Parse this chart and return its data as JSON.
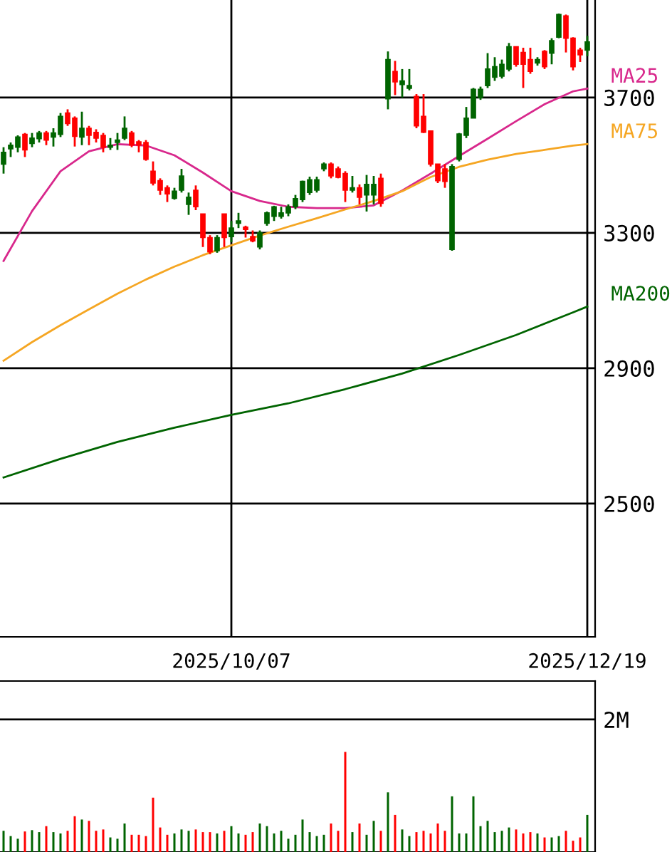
{
  "chart_data": [
    {
      "type": "candlestick",
      "categories": [
        null,
        null,
        null,
        null,
        null,
        null,
        null,
        null,
        null,
        null,
        null,
        null,
        null,
        null,
        null,
        null,
        null,
        null,
        null,
        null,
        null,
        null,
        null,
        null,
        null,
        null,
        null,
        null,
        null,
        null,
        null,
        null,
        "2025/10/07",
        null,
        null,
        null,
        null,
        null,
        null,
        null,
        null,
        null,
        null,
        null,
        null,
        null,
        null,
        null,
        null,
        null,
        null,
        null,
        null,
        null,
        null,
        null,
        null,
        null,
        null,
        null,
        null,
        null,
        null,
        null,
        null,
        null,
        null,
        null,
        null,
        null,
        null,
        null,
        null,
        null,
        null,
        null,
        null,
        null,
        null,
        null,
        null,
        null,
        "2025/12/19"
      ],
      "ohlc": [
        [
          3503,
          3553,
          3475,
          3538
        ],
        [
          3548,
          3567,
          3524,
          3559
        ],
        [
          3553,
          3588,
          3538,
          3583
        ],
        [
          3591,
          3595,
          3524,
          3545
        ],
        [
          3564,
          3595,
          3553,
          3580
        ],
        [
          3578,
          3601,
          3567,
          3595
        ],
        [
          3595,
          3601,
          3559,
          3574
        ],
        [
          3583,
          3609,
          3555,
          3595
        ],
        [
          3591,
          3654,
          3583,
          3644
        ],
        [
          3654,
          3665,
          3616,
          3623
        ],
        [
          3639,
          3644,
          3555,
          3585
        ],
        [
          3583,
          3658,
          3559,
          3609
        ],
        [
          3609,
          3616,
          3559,
          3588
        ],
        [
          3597,
          3606,
          3567,
          3580
        ],
        [
          3588,
          3595,
          3538,
          3553
        ],
        [
          3553,
          3580,
          3545,
          3559
        ],
        [
          3567,
          3595,
          3545,
          3574
        ],
        [
          3580,
          3644,
          3574,
          3609
        ],
        [
          3595,
          3601,
          3553,
          3559
        ],
        [
          3569,
          3574,
          3538,
          3559
        ],
        [
          3567,
          3574,
          3513,
          3517
        ],
        [
          3482,
          3511,
          3440,
          3447
        ],
        [
          3454,
          3461,
          3412,
          3426
        ],
        [
          3433,
          3440,
          3391,
          3415
        ],
        [
          3402,
          3433,
          3398,
          3423
        ],
        [
          3426,
          3489,
          3419,
          3468
        ],
        [
          3384,
          3419,
          3353,
          3405
        ],
        [
          3426,
          3440,
          3367,
          3377
        ],
        [
          3356,
          3356,
          3258,
          3286
        ],
        [
          3286,
          3293,
          3237,
          3244
        ],
        [
          3247,
          3293,
          3241,
          3286
        ],
        [
          3356,
          3356,
          3258,
          3286
        ],
        [
          3289,
          3335,
          3272,
          3314
        ],
        [
          3328,
          3359,
          3314,
          3335
        ],
        [
          3317,
          3321,
          3286,
          3310
        ],
        [
          3289,
          3307,
          3272,
          3276
        ],
        [
          3258,
          3307,
          3251,
          3300
        ],
        [
          3328,
          3363,
          3321,
          3359
        ],
        [
          3349,
          3380,
          3335,
          3377
        ],
        [
          3349,
          3377,
          3342,
          3359
        ],
        [
          3359,
          3384,
          3349,
          3377
        ],
        [
          3377,
          3412,
          3370,
          3401
        ],
        [
          3398,
          3454,
          3391,
          3452
        ],
        [
          3419,
          3466,
          3412,
          3457
        ],
        [
          3426,
          3466,
          3419,
          3457
        ],
        [
          3489,
          3508,
          3482,
          3503
        ],
        [
          3503,
          3508,
          3461,
          3468
        ],
        [
          3489,
          3496,
          3461,
          3464
        ],
        [
          3475,
          3482,
          3391,
          3426
        ],
        [
          3426,
          3468,
          3419,
          3433
        ],
        [
          3433,
          3443,
          3384,
          3405
        ],
        [
          3412,
          3471,
          3363,
          3443
        ],
        [
          3412,
          3468,
          3384,
          3443
        ],
        [
          3461,
          3475,
          3377,
          3387
        ],
        [
          3696,
          3836,
          3665,
          3812
        ],
        [
          3777,
          3808,
          3707,
          3746
        ],
        [
          3738,
          3784,
          3700,
          3749
        ],
        [
          3727,
          3784,
          3721,
          3735
        ],
        [
          3703,
          3710,
          3609,
          3616
        ],
        [
          3644,
          3710,
          3595,
          3597
        ],
        [
          3601,
          3601,
          3496,
          3503
        ],
        [
          3503,
          3503,
          3447,
          3454
        ],
        [
          3489,
          3503,
          3433,
          3452
        ],
        [
          3251,
          3503,
          3247,
          3496
        ],
        [
          3517,
          3595,
          3511,
          3592
        ],
        [
          3588,
          3672,
          3580,
          3639
        ],
        [
          3639,
          3728,
          3639,
          3724
        ],
        [
          3700,
          3732,
          3693,
          3724
        ],
        [
          3735,
          3831,
          3728,
          3784
        ],
        [
          3760,
          3819,
          3749,
          3791
        ],
        [
          3763,
          3812,
          3756,
          3798
        ],
        [
          3784,
          3861,
          3777,
          3850
        ],
        [
          3850,
          3850,
          3791,
          3798
        ],
        [
          3833,
          3847,
          3728,
          3798
        ],
        [
          3812,
          3847,
          3770,
          3777
        ],
        [
          3802,
          3819,
          3794,
          3812
        ],
        [
          3836,
          3840,
          3784,
          3791
        ],
        [
          3831,
          3875,
          3798,
          3868
        ],
        [
          3878,
          3948,
          3875,
          3945
        ],
        [
          3941,
          3945,
          3833,
          3875
        ],
        [
          3875,
          3878,
          3780,
          3791
        ],
        [
          3840,
          3847,
          3805,
          3826
        ],
        [
          3840,
          3882,
          3822,
          3864
        ]
      ],
      "colors": [
        "#006400",
        "#006400",
        "#006400",
        "#ff0000",
        "#006400",
        "#006400",
        "#ff0000",
        "#006400",
        "#006400",
        "#ff0000",
        "#ff0000",
        "#006400",
        "#ff0000",
        "#ff0000",
        "#ff0000",
        "#006400",
        "#006400",
        "#006400",
        "#ff0000",
        "#ff0000",
        "#ff0000",
        "#ff0000",
        "#ff0000",
        "#ff0000",
        "#006400",
        "#006400",
        "#006400",
        "#ff0000",
        "#ff0000",
        "#ff0000",
        "#006400",
        "#ff0000",
        "#006400",
        "#006400",
        "#ff0000",
        "#ff0000",
        "#006400",
        "#006400",
        "#006400",
        "#006400",
        "#006400",
        "#006400",
        "#006400",
        "#006400",
        "#006400",
        "#006400",
        "#ff0000",
        "#ff0000",
        "#ff0000",
        "#006400",
        "#ff0000",
        "#006400",
        "#006400",
        "#ff0000",
        "#006400",
        "#ff0000",
        "#006400",
        "#006400",
        "#ff0000",
        "#ff0000",
        "#ff0000",
        "#ff0000",
        "#ff0000",
        "#006400",
        "#006400",
        "#006400",
        "#006400",
        "#006400",
        "#006400",
        "#006400",
        "#006400",
        "#006400",
        "#ff0000",
        "#ff0000",
        "#ff0000",
        "#006400",
        "#ff0000",
        "#006400",
        "#006400",
        "#ff0000",
        "#ff0000",
        "#ff0000",
        "#006400"
      ],
      "series": [
        {
          "name": "MA25",
          "type": "line",
          "color": "#d8288c",
          "values": [
            3217,
            null,
            null,
            null,
            3364,
            null,
            null,
            null,
            3482,
            null,
            null,
            null,
            3541,
            null,
            null,
            null,
            3562,
            null,
            null,
            null,
            3558,
            null,
            null,
            null,
            3529,
            null,
            null,
            null,
            3478,
            null,
            null,
            null,
            3423,
            null,
            null,
            null,
            3394,
            null,
            null,
            null,
            3377,
            null,
            null,
            null,
            3373,
            null,
            null,
            null,
            3373,
            null,
            null,
            null,
            3381,
            null,
            null,
            null,
            3425,
            null,
            null,
            null,
            3475,
            null,
            null,
            null,
            3527,
            null,
            null,
            null,
            3578,
            null,
            null,
            null,
            3630,
            null,
            null,
            null,
            3680,
            null,
            null,
            null,
            3718,
            null,
            3726
          ]
        },
        {
          "name": "MA75",
          "type": "line",
          "color": "#f5a623",
          "values": [
            2922,
            null,
            null,
            null,
            2977,
            null,
            null,
            null,
            3027,
            null,
            null,
            null,
            3074,
            null,
            null,
            null,
            3120,
            null,
            null,
            null,
            3162,
            null,
            null,
            null,
            3200,
            null,
            null,
            null,
            3234,
            null,
            null,
            null,
            3263,
            null,
            null,
            null,
            3292,
            null,
            null,
            null,
            3318,
            null,
            null,
            null,
            3343,
            null,
            null,
            null,
            3369,
            null,
            null,
            null,
            3394,
            null,
            null,
            null,
            3423,
            null,
            null,
            null,
            3465,
            null,
            null,
            null,
            3495,
            null,
            null,
            null,
            3516,
            null,
            null,
            null,
            3533,
            null,
            null,
            null,
            3545,
            null,
            null,
            null,
            3558,
            null,
            3562
          ]
        },
        {
          "name": "MA200",
          "type": "line",
          "color": "#006400",
          "values": [
            2577,
            null,
            null,
            null,
            null,
            null,
            null,
            null,
            2632,
            null,
            null,
            null,
            null,
            null,
            null,
            null,
            2682,
            null,
            null,
            null,
            null,
            null,
            null,
            null,
            2724,
            null,
            null,
            null,
            null,
            null,
            null,
            null,
            2762,
            null,
            null,
            null,
            null,
            null,
            null,
            null,
            2796,
            null,
            null,
            null,
            null,
            null,
            null,
            null,
            2838,
            null,
            null,
            null,
            null,
            null,
            null,
            null,
            2884,
            null,
            null,
            null,
            null,
            null,
            null,
            null,
            2939,
            null,
            null,
            null,
            null,
            null,
            null,
            null,
            2998,
            null,
            null,
            null,
            null,
            null,
            null,
            null,
            3065,
            null,
            3082
          ]
        }
      ],
      "ylim": [
        2106,
        3988
      ],
      "yticks": [
        2500,
        2900,
        3300,
        3700
      ],
      "grid": true
    },
    {
      "type": "bar",
      "categories": [
        null,
        null,
        null,
        null,
        null,
        null,
        null,
        null,
        null,
        null,
        null,
        null,
        null,
        null,
        null,
        null,
        null,
        null,
        null,
        null,
        null,
        null,
        null,
        null,
        null,
        null,
        null,
        null,
        null,
        null,
        null,
        null,
        "2025/10/07",
        null,
        null,
        null,
        null,
        null,
        null,
        null,
        null,
        null,
        null,
        null,
        null,
        null,
        null,
        null,
        null,
        null,
        null,
        null,
        null,
        null,
        null,
        null,
        null,
        null,
        null,
        null,
        null,
        null,
        null,
        null,
        null,
        null,
        null,
        null,
        null,
        null,
        null,
        null,
        null,
        null,
        null,
        null,
        null,
        null,
        null,
        null,
        null,
        null,
        "2025/12/19"
      ],
      "values": [
        0.32,
        0.24,
        0.2,
        0.31,
        0.33,
        0.3,
        0.39,
        0.3,
        0.28,
        0.32,
        0.54,
        0.49,
        0.47,
        0.32,
        0.34,
        0.22,
        0.2,
        0.43,
        0.26,
        0.26,
        0.24,
        0.82,
        0.37,
        0.26,
        0.28,
        0.34,
        0.32,
        0.34,
        0.3,
        0.3,
        0.28,
        0.32,
        0.39,
        0.28,
        0.26,
        0.3,
        0.43,
        0.39,
        0.28,
        0.32,
        0.2,
        0.26,
        0.49,
        0.3,
        0.24,
        0.26,
        0.43,
        0.32,
        1.51,
        0.3,
        0.43,
        0.26,
        0.47,
        0.32,
        0.9,
        0.56,
        0.34,
        0.24,
        0.3,
        0.32,
        0.28,
        0.43,
        0.32,
        0.84,
        0.28,
        0.28,
        0.84,
        0.39,
        0.47,
        0.3,
        0.32,
        0.37,
        0.34,
        0.28,
        0.3,
        0.28,
        0.22,
        0.22,
        0.24,
        0.32,
        0.17,
        0.22,
        0.56
      ],
      "colors": [
        "#006400",
        "#006400",
        "#006400",
        "#ff0000",
        "#006400",
        "#006400",
        "#ff0000",
        "#006400",
        "#006400",
        "#ff0000",
        "#ff0000",
        "#006400",
        "#ff0000",
        "#ff0000",
        "#ff0000",
        "#006400",
        "#006400",
        "#006400",
        "#ff0000",
        "#ff0000",
        "#ff0000",
        "#ff0000",
        "#ff0000",
        "#ff0000",
        "#006400",
        "#006400",
        "#006400",
        "#ff0000",
        "#ff0000",
        "#ff0000",
        "#006400",
        "#ff0000",
        "#006400",
        "#006400",
        "#ff0000",
        "#ff0000",
        "#006400",
        "#006400",
        "#006400",
        "#006400",
        "#006400",
        "#006400",
        "#006400",
        "#006400",
        "#006400",
        "#006400",
        "#ff0000",
        "#ff0000",
        "#ff0000",
        "#006400",
        "#ff0000",
        "#006400",
        "#006400",
        "#ff0000",
        "#006400",
        "#ff0000",
        "#006400",
        "#006400",
        "#ff0000",
        "#ff0000",
        "#ff0000",
        "#ff0000",
        "#ff0000",
        "#006400",
        "#006400",
        "#006400",
        "#006400",
        "#006400",
        "#006400",
        "#006400",
        "#006400",
        "#006400",
        "#ff0000",
        "#ff0000",
        "#ff0000",
        "#006400",
        "#ff0000",
        "#006400",
        "#006400",
        "#ff0000",
        "#ff0000",
        "#ff0000",
        "#006400"
      ],
      "ylim": [
        0,
        2.58
      ],
      "yticks": [
        {
          "value": 2,
          "label": "2M"
        }
      ],
      "grid": "y",
      "tick_labels": "y"
    }
  ]
}
